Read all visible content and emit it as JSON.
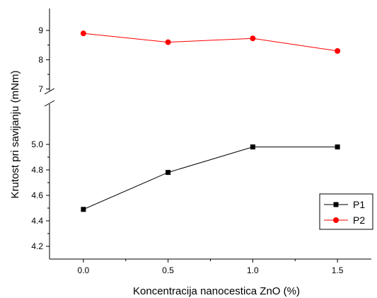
{
  "chart_data": {
    "type": "line",
    "xlabel": "Koncentracija nanocestica ZnO (%)",
    "ylabel": "Krutost pri savijanju (mNm)",
    "x": [
      0.0,
      0.5,
      1.0,
      1.5
    ],
    "x_ticks": [
      "0.0",
      "0.5",
      "1.0",
      "1.5"
    ],
    "xlim": [
      -0.2,
      1.7
    ],
    "y_axis_break": true,
    "ylim_lower": [
      4.1,
      5.3
    ],
    "y_ticks_lower": [
      "4.2",
      "4.4",
      "4.6",
      "4.8",
      "5.0"
    ],
    "ylim_upper": [
      6.85,
      9.75
    ],
    "y_ticks_upper": [
      "7",
      "8",
      "9"
    ],
    "series": [
      {
        "name": "P1",
        "values": [
          4.49,
          4.78,
          4.98,
          4.98
        ],
        "color": "#000000",
        "marker": "square",
        "panel": "lower"
      },
      {
        "name": "P2",
        "values": [
          8.9,
          8.6,
          8.73,
          8.3
        ],
        "color": "#ff0000",
        "marker": "circle",
        "panel": "upper"
      }
    ],
    "legend": "right",
    "grid": false
  }
}
